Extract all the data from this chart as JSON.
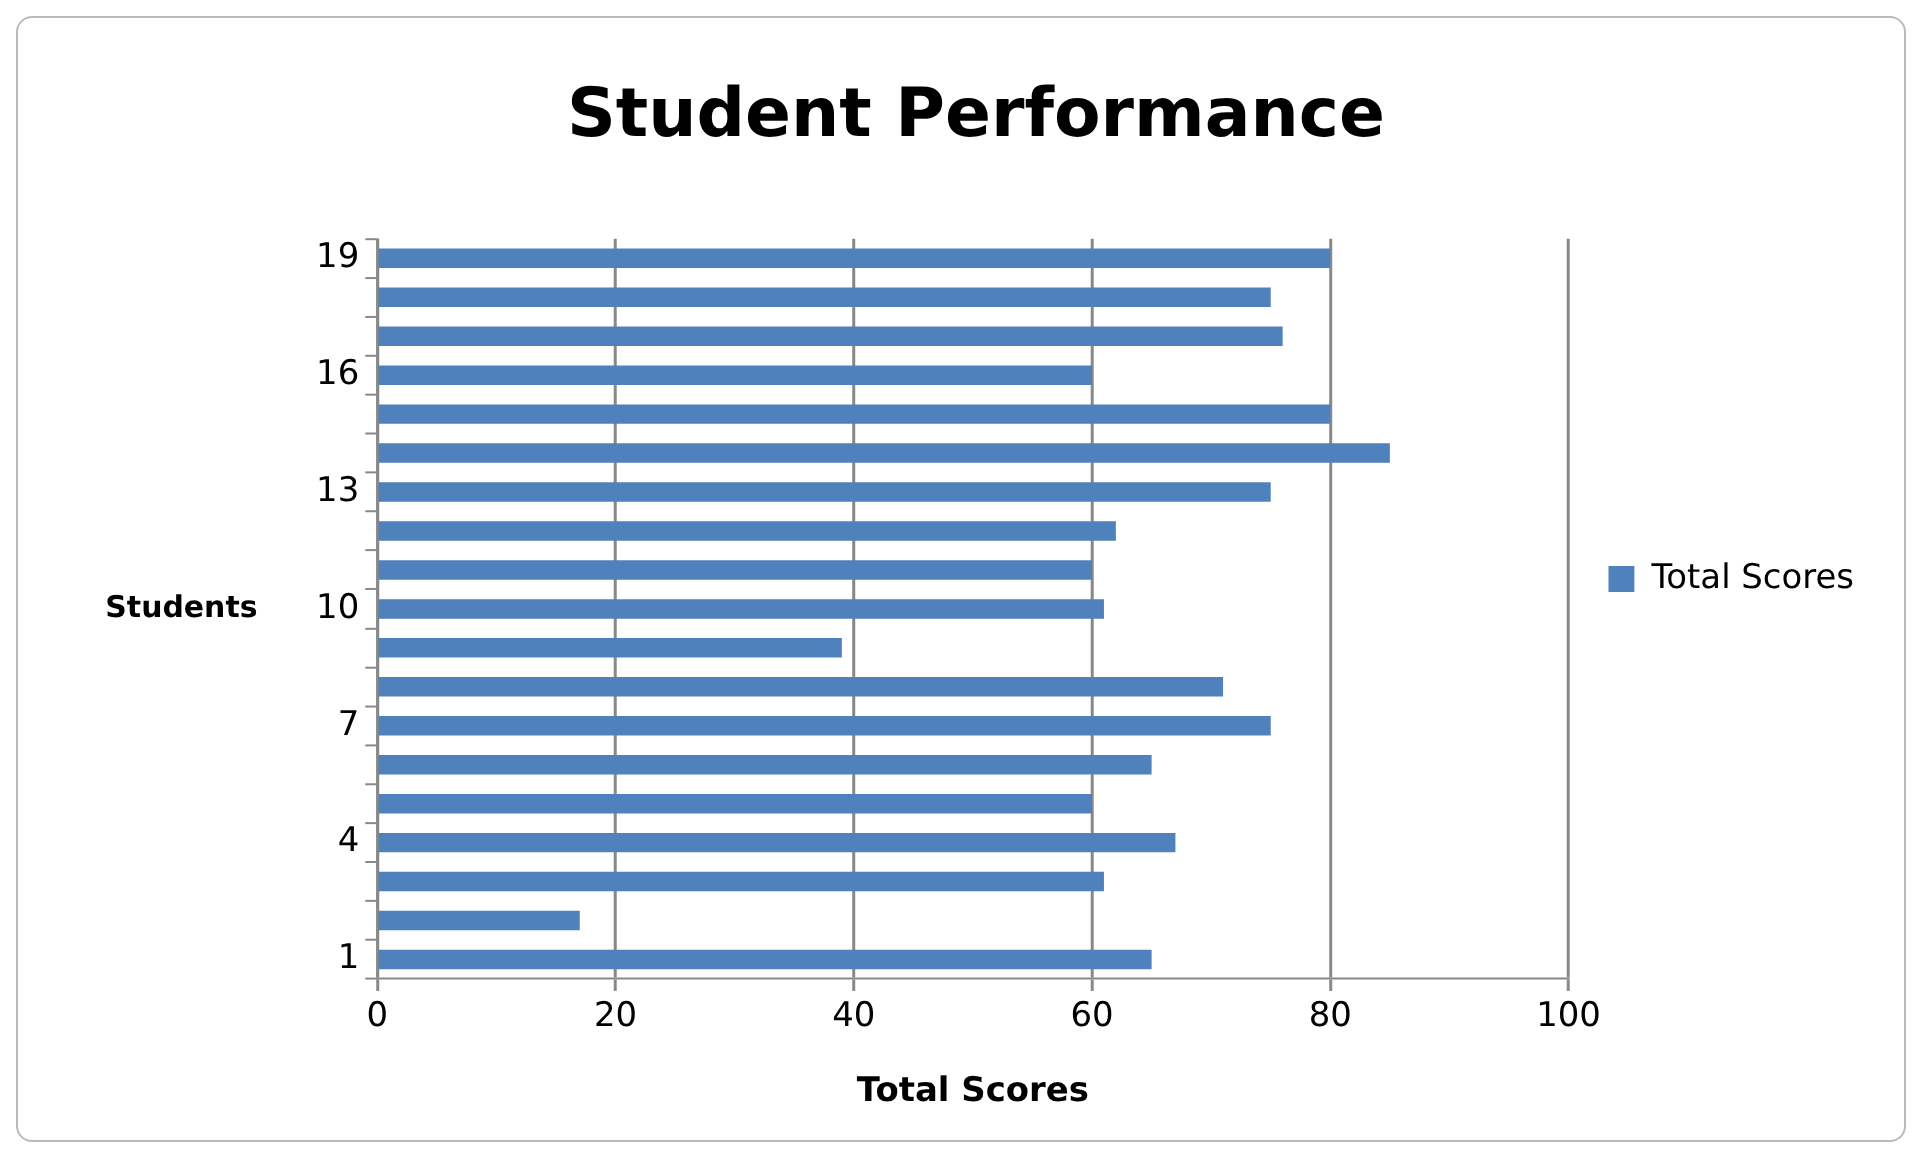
{
  "chart_data": {
    "type": "bar",
    "orientation": "horizontal",
    "title": "Student Performance",
    "xlabel": "Total Scores",
    "ylabel": "Students",
    "categories": [
      "19",
      null,
      null,
      "16",
      null,
      null,
      "13",
      null,
      null,
      "10",
      null,
      null,
      "7",
      null,
      null,
      "4",
      null,
      null,
      "1"
    ],
    "series": [
      {
        "name": "Total Scores",
        "color": "#4f81bd",
        "values": [
          80,
          75,
          76,
          60,
          80,
          85,
          75,
          62,
          60,
          61,
          39,
          71,
          75,
          65,
          60,
          67,
          61,
          17,
          65
        ]
      }
    ],
    "xlim": [
      0,
      100
    ],
    "xticks": [
      0,
      20,
      40,
      60,
      80,
      100
    ],
    "grid": "x",
    "legend": "right"
  }
}
